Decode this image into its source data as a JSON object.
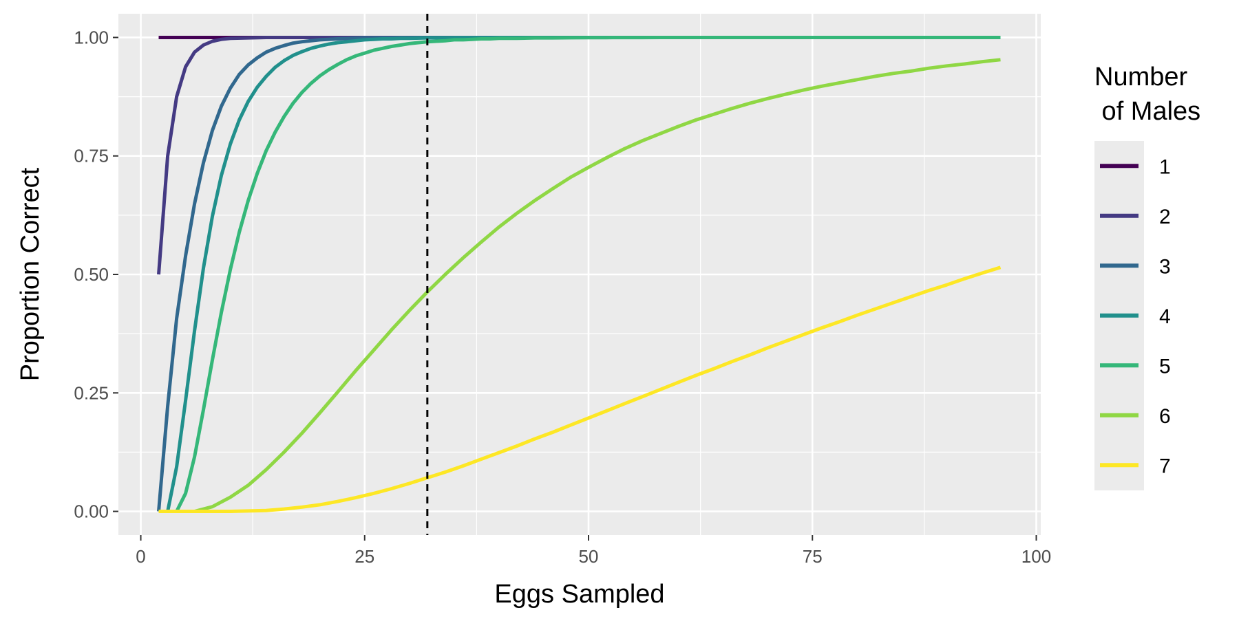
{
  "chart_data": {
    "type": "line",
    "title": "",
    "xlabel": "Eggs Sampled",
    "ylabel": "Proportion Correct",
    "xlim": [
      -2.5,
      100.5
    ],
    "ylim": [
      -0.05,
      1.05
    ],
    "x_ticks": [
      0,
      25,
      50,
      75,
      100
    ],
    "x_tick_labels": [
      "0",
      "25",
      "50",
      "75",
      "100"
    ],
    "y_ticks": [
      0,
      0.25,
      0.5,
      0.75,
      1
    ],
    "y_tick_labels": [
      "0.00",
      "0.25",
      "0.50",
      "0.75",
      "1.00"
    ],
    "grid": true,
    "vline": {
      "x": 32,
      "style": "dashed"
    },
    "legend": {
      "title_line1": "Number",
      "title_line2": " of Males",
      "placement": "right"
    },
    "series": [
      {
        "name": "1",
        "color": "#440154",
        "x": [
          2,
          3,
          4,
          5,
          96
        ],
        "y": [
          1,
          1,
          1,
          1,
          1
        ]
      },
      {
        "name": "2",
        "color": "#443A83",
        "x": [
          2,
          3,
          4,
          5,
          6,
          7,
          8,
          9,
          10,
          12,
          14,
          16,
          20,
          96
        ],
        "y": [
          0.5,
          0.75,
          0.875,
          0.938,
          0.969,
          0.984,
          0.992,
          0.996,
          0.998,
          0.999,
          1,
          1,
          1,
          1
        ]
      },
      {
        "name": "3",
        "color": "#31688E",
        "x": [
          2,
          3,
          4,
          5,
          6,
          7,
          8,
          9,
          10,
          11,
          12,
          13,
          14,
          15,
          16,
          17,
          18,
          20,
          22,
          25,
          28,
          32,
          40,
          96
        ],
        "y": [
          0,
          0.222,
          0.407,
          0.539,
          0.649,
          0.736,
          0.804,
          0.855,
          0.893,
          0.922,
          0.942,
          0.957,
          0.969,
          0.977,
          0.983,
          0.988,
          0.991,
          0.995,
          0.997,
          0.999,
          0.9995,
          1,
          1,
          1
        ]
      },
      {
        "name": "4",
        "color": "#21908C",
        "x": [
          2,
          3,
          4,
          5,
          6,
          7,
          8,
          9,
          10,
          11,
          12,
          13,
          14,
          15,
          16,
          17,
          18,
          19,
          20,
          21,
          22,
          23,
          24,
          25,
          26,
          27,
          28,
          29,
          30,
          32,
          34,
          36,
          38,
          40,
          44,
          48,
          52,
          56,
          60,
          70,
          80,
          96
        ],
        "y": [
          0,
          0,
          0.094,
          0.234,
          0.381,
          0.514,
          0.623,
          0.709,
          0.775,
          0.826,
          0.865,
          0.895,
          0.918,
          0.937,
          0.951,
          0.962,
          0.97,
          0.977,
          0.982,
          0.986,
          0.989,
          0.991,
          0.993,
          0.995,
          0.996,
          0.997,
          0.997,
          0.998,
          0.998,
          0.999,
          0.999,
          0.9995,
          0.9997,
          0.9998,
          0.9999,
          1,
          1,
          1,
          1,
          1,
          1,
          1
        ]
      },
      {
        "name": "5",
        "color": "#35B779",
        "x": [
          2,
          3,
          4,
          5,
          6,
          7,
          8,
          9,
          10,
          11,
          12,
          13,
          14,
          15,
          16,
          17,
          18,
          19,
          20,
          21,
          22,
          23,
          24,
          25,
          26,
          27,
          28,
          29,
          30,
          31,
          32,
          33,
          34,
          35,
          36,
          37,
          38,
          39,
          40,
          42,
          44,
          46,
          48,
          50,
          52,
          54,
          56,
          58,
          60,
          62,
          64,
          66,
          68,
          70,
          72,
          74,
          76,
          78,
          80,
          82,
          84,
          86,
          88,
          90,
          92,
          94,
          96
        ],
        "y": [
          0,
          0,
          0,
          0.038,
          0.115,
          0.215,
          0.32,
          0.42,
          0.51,
          0.589,
          0.656,
          0.713,
          0.761,
          0.8,
          0.833,
          0.861,
          0.884,
          0.903,
          0.919,
          0.932,
          0.943,
          0.953,
          0.961,
          0.967,
          0.973,
          0.977,
          0.981,
          0.984,
          0.987,
          0.989,
          0.991,
          0.992,
          0.993,
          0.995,
          0.995,
          0.996,
          0.997,
          0.997,
          0.998,
          0.998,
          0.999,
          0.999,
          0.9994,
          0.9996,
          0.9997,
          0.9998,
          0.9998,
          0.9999,
          0.9999,
          0.9999,
          1,
          1,
          1,
          1,
          1,
          1,
          1,
          1,
          1,
          1,
          1,
          1,
          1,
          1,
          1,
          1,
          1
        ]
      },
      {
        "name": "6",
        "color": "#8FD744",
        "x": [
          2,
          4,
          6,
          8,
          10,
          12,
          14,
          16,
          18,
          20,
          22,
          24,
          26,
          28,
          30,
          32,
          34,
          36,
          38,
          40,
          42,
          44,
          46,
          48,
          50,
          52,
          54,
          56,
          58,
          60,
          62,
          64,
          66,
          68,
          70,
          72,
          74,
          76,
          78,
          80,
          82,
          84,
          86,
          88,
          90,
          92,
          94,
          96
        ],
        "y": [
          0,
          0,
          0,
          0.01,
          0.03,
          0.055,
          0.088,
          0.125,
          0.165,
          0.208,
          0.252,
          0.297,
          0.34,
          0.383,
          0.424,
          0.463,
          0.5,
          0.535,
          0.568,
          0.6,
          0.629,
          0.656,
          0.681,
          0.705,
          0.726,
          0.746,
          0.765,
          0.782,
          0.797,
          0.812,
          0.826,
          0.838,
          0.85,
          0.861,
          0.871,
          0.88,
          0.889,
          0.897,
          0.904,
          0.911,
          0.918,
          0.924,
          0.929,
          0.935,
          0.94,
          0.944,
          0.949,
          0.953
        ]
      },
      {
        "name": "7",
        "color": "#FDE725",
        "x": [
          2,
          6,
          10,
          12,
          14,
          16,
          18,
          20,
          22,
          24,
          26,
          28,
          30,
          32,
          34,
          36,
          38,
          40,
          42,
          44,
          46,
          48,
          50,
          52,
          54,
          56,
          58,
          60,
          62,
          64,
          66,
          68,
          70,
          72,
          74,
          76,
          78,
          80,
          82,
          84,
          86,
          88,
          90,
          92,
          94,
          96
        ],
        "y": [
          0,
          0,
          0,
          0.001,
          0.002,
          0.005,
          0.009,
          0.014,
          0.021,
          0.029,
          0.038,
          0.048,
          0.059,
          0.071,
          0.083,
          0.096,
          0.11,
          0.124,
          0.138,
          0.153,
          0.167,
          0.182,
          0.197,
          0.212,
          0.227,
          0.242,
          0.257,
          0.272,
          0.287,
          0.301,
          0.316,
          0.33,
          0.345,
          0.359,
          0.373,
          0.387,
          0.4,
          0.414,
          0.427,
          0.44,
          0.453,
          0.466,
          0.478,
          0.491,
          0.503,
          0.515
        ]
      }
    ]
  }
}
